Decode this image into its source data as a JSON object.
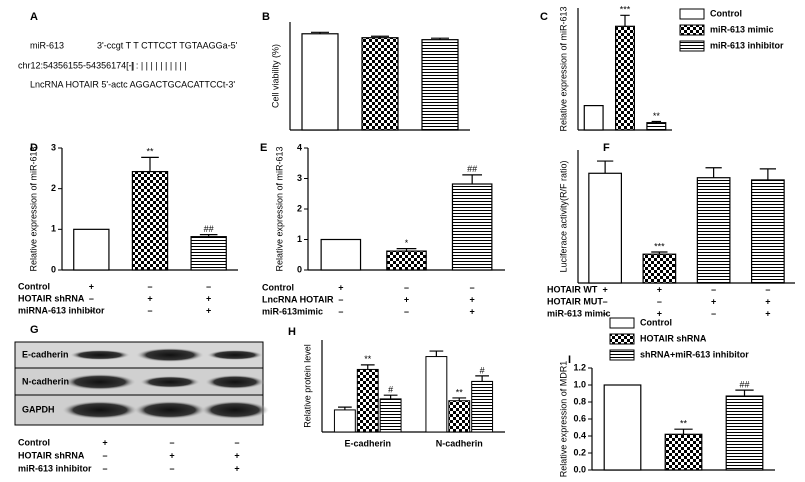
{
  "panel_a": {
    "letter": "A",
    "mir": "miR-613",
    "mir_seq": "3'-ccgt T T CTTCCT TGTAAGGa-5'",
    "pairing": "| :  |  | |      | | | | | | |",
    "chr": "chr12:54356155-54356174[-]",
    "lnc": "LncRNA HOTAIR 5'-actc AGGACTGCACATTCCt-3'"
  },
  "panel_g": {
    "letter": "G",
    "rows": [
      "E-cadherin",
      "N-cadherin",
      "GAPDH"
    ],
    "conditions": [
      {
        "label": "Control",
        "marks": [
          "+",
          "–",
          "–"
        ]
      },
      {
        "label": "HOTAIR shRNA",
        "marks": [
          "–",
          "+",
          "+"
        ]
      },
      {
        "label": "miR-613 inhibitor",
        "marks": [
          "–",
          "–",
          "+"
        ]
      }
    ]
  },
  "chart_data": [
    {
      "type": "bar",
      "panel": "B",
      "ylabel": "Cell viability (%)",
      "ylim": [
        0,
        110
      ],
      "categories": [
        null,
        null,
        null
      ],
      "values": [
        98,
        94,
        92
      ],
      "errors": [
        1.5,
        1.5,
        1.5
      ],
      "patterns": [
        "none",
        "checker",
        "hlines"
      ]
    },
    {
      "type": "bar",
      "panel": "C",
      "ylabel": "Relative expression of miR-613",
      "ylim": [
        0,
        5
      ],
      "categories": [
        null,
        null,
        null
      ],
      "values": [
        1,
        4.25,
        0.3
      ],
      "errors": [
        null,
        0.45,
        0.05
      ],
      "annotations": [
        null,
        "***",
        "**"
      ],
      "patterns": [
        "none",
        "checker",
        "hlines"
      ],
      "legend": [
        "Control",
        "miR-613 mimic",
        "miR-613 inhibitor"
      ]
    },
    {
      "type": "bar",
      "panel": "D",
      "ylabel": "Relative expression of miR-613",
      "ylim": [
        0,
        3
      ],
      "yticks": [
        0,
        1,
        2,
        3
      ],
      "categories": [
        null,
        null,
        null
      ],
      "values": [
        1,
        2.42,
        0.82
      ],
      "errors": [
        null,
        0.35,
        0.05
      ],
      "annotations": [
        null,
        "**",
        "##"
      ],
      "patterns": [
        "none",
        "checker",
        "hlines"
      ],
      "conditions": [
        {
          "label": "Control",
          "marks": [
            "+",
            "–",
            "–"
          ]
        },
        {
          "label": "HOTAIR shRNA",
          "marks": [
            "–",
            "+",
            "+"
          ]
        },
        {
          "label": "miRNA-613 inhibitor",
          "marks": [
            "–",
            "–",
            "+"
          ]
        }
      ]
    },
    {
      "type": "bar",
      "panel": "E",
      "ylabel": "Relative expression of miR-613",
      "ylim": [
        0,
        4
      ],
      "yticks": [
        0,
        1,
        2,
        3,
        4
      ],
      "categories": [
        null,
        null,
        null
      ],
      "values": [
        1,
        0.62,
        2.82
      ],
      "errors": [
        null,
        0.08,
        0.3
      ],
      "annotations": [
        null,
        "*",
        "##"
      ],
      "patterns": [
        "none",
        "checker",
        "hlines"
      ],
      "conditions": [
        {
          "label": "Control",
          "marks": [
            "+",
            "–",
            "–"
          ]
        },
        {
          "label": "LncRNA HOTAIR",
          "marks": [
            "–",
            "+",
            "+"
          ]
        },
        {
          "label": "miR-613mimic",
          "marks": [
            "–",
            "–",
            "+"
          ]
        }
      ]
    },
    {
      "type": "bar",
      "panel": "F",
      "ylabel": "Luciferace activity(R/F ratio)",
      "ylim": [
        0,
        6
      ],
      "categories": [
        null,
        null,
        null,
        null
      ],
      "values": [
        4.95,
        1.3,
        4.75,
        4.65
      ],
      "errors": [
        0.55,
        0.1,
        0.45,
        0.5
      ],
      "annotations": [
        null,
        "***",
        null,
        null
      ],
      "patterns": [
        "none",
        "checker",
        "hlines",
        "hlines"
      ],
      "conditions": [
        {
          "label": "HOTAIR WT",
          "marks": [
            "+",
            "+",
            "–",
            "–"
          ]
        },
        {
          "label": "HOTAIR MUT",
          "marks": [
            "–",
            "–",
            "+",
            "+"
          ]
        },
        {
          "label": "miR-613 mimic",
          "marks": [
            "–",
            "+",
            "–",
            "+"
          ]
        }
      ]
    },
    {
      "type": "bar",
      "panel": "H",
      "ylabel": "Relative protein level",
      "ylim": [
        0,
        1
      ],
      "categories": [
        "E-cadherin",
        "N-cadherin"
      ],
      "series": [
        {
          "name": "Control",
          "pattern": "none",
          "values": [
            0.24,
            0.82
          ],
          "errors": [
            0.03,
            0.06
          ],
          "annotations": [
            null,
            null
          ]
        },
        {
          "name": "HOTAIR shRNA",
          "pattern": "checker",
          "values": [
            0.68,
            0.34
          ],
          "errors": [
            0.05,
            0.03
          ],
          "annotations": [
            "**",
            "**"
          ]
        },
        {
          "name": "shRNA+miR-613 inhibitor",
          "pattern": "hlines",
          "values": [
            0.36,
            0.55
          ],
          "errors": [
            0.04,
            0.06
          ],
          "annotations": [
            "#",
            "#"
          ]
        }
      ]
    },
    {
      "type": "bar",
      "panel": "I",
      "ylabel": "Relative expression of MDR1",
      "ylim": [
        0,
        1.2
      ],
      "yticks": [
        {
          "value": 0,
          "label": "0.0"
        },
        0.2,
        0.4,
        0.6,
        0.8,
        {
          "value": 1,
          "label": "1.0"
        },
        1.2
      ],
      "categories": [
        null,
        null,
        null
      ],
      "values": [
        1,
        0.42,
        0.87
      ],
      "errors": [
        null,
        0.06,
        0.07
      ],
      "annotations": [
        null,
        "**",
        "##"
      ],
      "patterns": [
        "none",
        "checker",
        "hlines"
      ],
      "legend": [
        "Control",
        "HOTAIR shRNA",
        "shRNA+miR-613 inhibitor"
      ]
    }
  ]
}
